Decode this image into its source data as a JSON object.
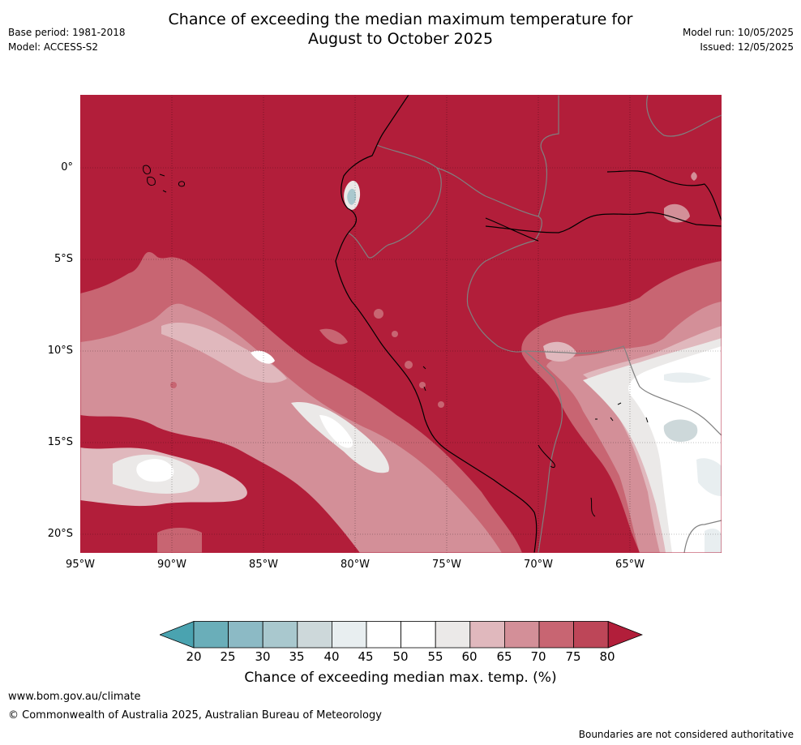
{
  "title_line1": "Chance of exceeding the median maximum temperature for",
  "title_line2": "August to October 2025",
  "meta_left": {
    "base_period": "Base period: 1981-2018",
    "model": "Model: ACCESS-S2"
  },
  "meta_right": {
    "model_run": "Model run: 10/05/2025",
    "issued": "Issued: 12/05/2025"
  },
  "lat_labels": [
    "0°",
    "5°S",
    "10°S",
    "15°S",
    "20°S"
  ],
  "lon_labels": [
    "95°W",
    "90°W",
    "85°W",
    "80°W",
    "75°W",
    "70°W",
    "65°W"
  ],
  "colorbar": {
    "ticks": [
      "20",
      "25",
      "30",
      "35",
      "40",
      "45",
      "50",
      "55",
      "60",
      "65",
      "70",
      "75",
      "80"
    ],
    "title": "Chance of exceeding median max. temp. (%)",
    "colors": {
      "below_20": "#4aa3b0",
      "20_25": "#6aaeb9",
      "25_30": "#8cbac5",
      "30_35": "#a9c8ce",
      "35_40": "#cdd8da",
      "40_45": "#e8eef0",
      "45_50": "#ffffff",
      "50_55": "#ffffff",
      "55_60": "#ebe9e8",
      "60_65": "#e0b8bd",
      "65_70": "#d38f98",
      "70_75": "#c86572",
      "75_80": "#bd4658",
      "above_80": "#b21e3a"
    }
  },
  "footer": {
    "url": "www.bom.gov.au/climate",
    "copyright": "© Commonwealth of Australia 2025, Australian Bureau of Meteorology",
    "note": "Boundaries are not considered authoritative"
  }
}
